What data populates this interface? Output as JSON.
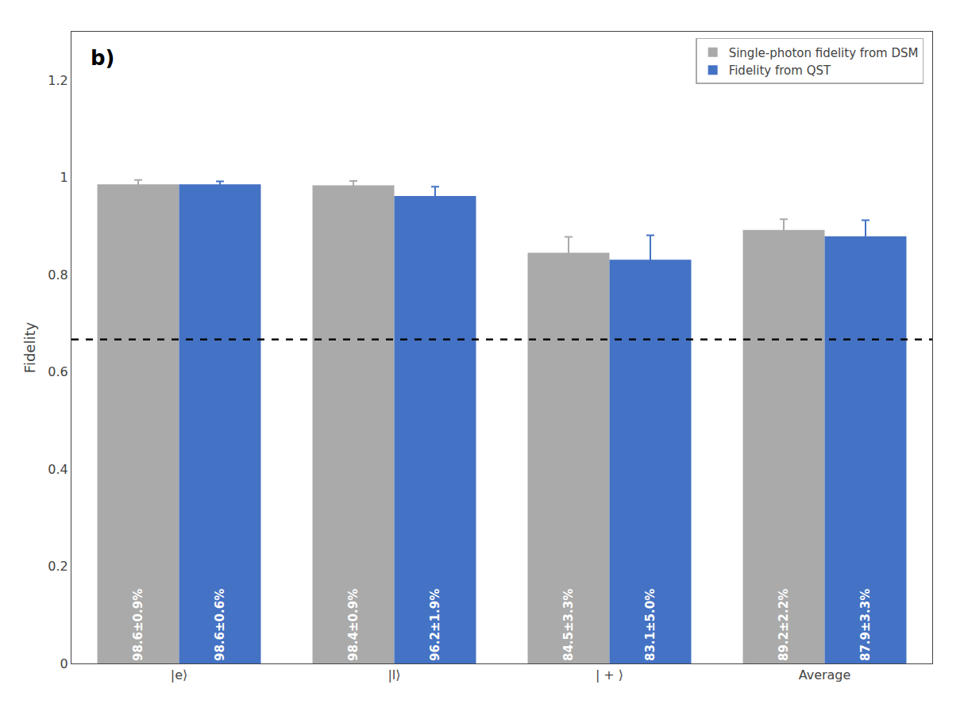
{
  "chart_data": {
    "type": "bar",
    "categories": [
      "|e⟩",
      "|l⟩",
      "| + ⟩",
      "Average"
    ],
    "series": [
      {
        "name": "Single-photon fidelity from DSM",
        "color": "#aaaaaa",
        "values": [
          0.986,
          0.984,
          0.845,
          0.892
        ],
        "errors": [
          0.009,
          0.009,
          0.033,
          0.022
        ],
        "value_labels": [
          "98.6±0.9%",
          "98.4±0.9%",
          "84.5±3.3%",
          "89.2±2.2%"
        ]
      },
      {
        "name": "Fidelity from QST",
        "color": "#4472c4",
        "values": [
          0.986,
          0.962,
          0.831,
          0.879
        ],
        "errors": [
          0.006,
          0.019,
          0.05,
          0.033
        ],
        "value_labels": [
          "98.6±0.6%",
          "96.2±1.9%",
          "83.1±5.0%",
          "87.9±3.3%"
        ]
      }
    ],
    "ylabel": "Fidelity",
    "annotations": [
      "b)"
    ],
    "reference_lines": [
      {
        "y": 0.6667,
        "line_style": "dashed",
        "color": "#000000"
      }
    ],
    "ylim": [
      0.0,
      1.3
    ],
    "yticks": [
      0.0,
      0.2,
      0.4,
      0.6,
      0.8,
      1.0,
      1.2
    ],
    "data_labels": true,
    "legend": "upper right",
    "grid": false
  }
}
